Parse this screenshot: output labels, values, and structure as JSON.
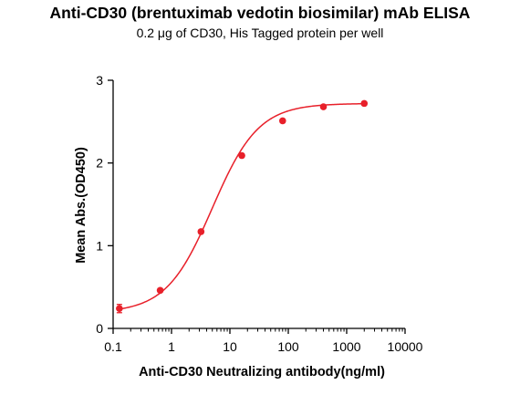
{
  "chart_data": {
    "type": "scatter",
    "title": "Anti-CD30 (brentuximab vedotin biosimilar) mAb ELISA",
    "subtitle": "0.2 μg of CD30, His Tagged protein per well",
    "xlabel": "Anti-CD30 Neutralizing antibody(ng/ml)",
    "ylabel": "Mean Abs.(OD450)",
    "x_scale": "log",
    "xlim": [
      0.1,
      10000
    ],
    "ylim": [
      0,
      3
    ],
    "x_ticks": [
      0.1,
      1,
      10,
      100,
      1000,
      10000
    ],
    "x_tick_labels": [
      "0.1",
      "1",
      "10",
      "100",
      "1000",
      "10000"
    ],
    "y_ticks": [
      0,
      1,
      2,
      3
    ],
    "y_tick_labels": [
      "0",
      "1",
      "2",
      "3"
    ],
    "grid": false,
    "color": "#e8202a",
    "points": [
      {
        "x": 0.128,
        "y": 0.24,
        "err": 0.05
      },
      {
        "x": 0.64,
        "y": 0.46,
        "err": 0.02
      },
      {
        "x": 3.2,
        "y": 1.17,
        "err": 0.02
      },
      {
        "x": 16,
        "y": 2.09,
        "err": 0.02
      },
      {
        "x": 80,
        "y": 2.51,
        "err": 0.02
      },
      {
        "x": 400,
        "y": 2.68,
        "err": 0.02
      },
      {
        "x": 2000,
        "y": 2.72,
        "err": 0.02
      }
    ],
    "fit": {
      "bottom": 0.19,
      "top": 2.72,
      "ec50": 5.0,
      "hill": 1.1
    }
  }
}
